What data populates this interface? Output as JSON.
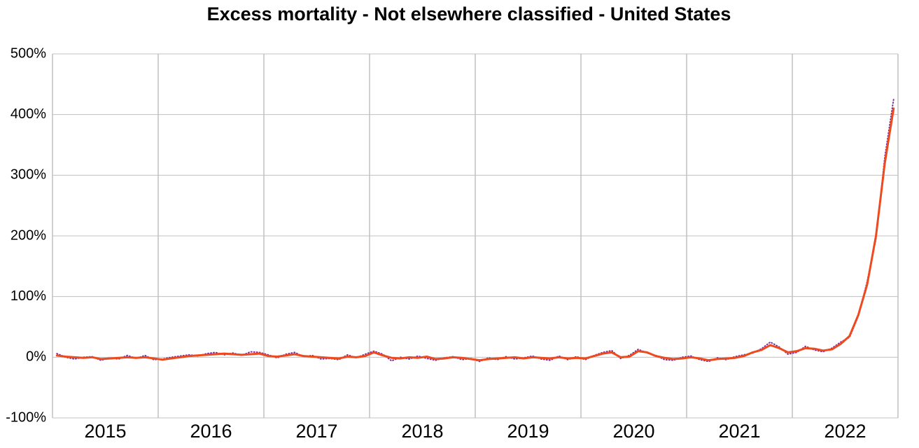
{
  "chart_data": {
    "type": "line",
    "title": "Excess mortality - Not elsewhere classified - United States",
    "categories": [
      null,
      null,
      null,
      null,
      null,
      null,
      "2015",
      null,
      null,
      null,
      null,
      null,
      null,
      null,
      null,
      null,
      null,
      null,
      "2016",
      null,
      null,
      null,
      null,
      null,
      null,
      null,
      null,
      null,
      null,
      null,
      "2017",
      null,
      null,
      null,
      null,
      null,
      null,
      null,
      null,
      null,
      null,
      null,
      "2018",
      null,
      null,
      null,
      null,
      null,
      null,
      null,
      null,
      null,
      null,
      null,
      "2019",
      null,
      null,
      null,
      null,
      null,
      null,
      null,
      null,
      null,
      null,
      null,
      "2020",
      null,
      null,
      null,
      null,
      null,
      null,
      null,
      null,
      null,
      null,
      null,
      "2021",
      null,
      null,
      null,
      null,
      null,
      null,
      null,
      null,
      null,
      null,
      null,
      "2022",
      null,
      null,
      null,
      null,
      null
    ],
    "series": [
      {
        "color": "#7a2fa0",
        "style": "dotted",
        "values": [
          6,
          0,
          -3,
          0,
          1,
          -5,
          -1,
          -3,
          3,
          -2,
          3,
          -4,
          -3,
          0,
          2,
          4,
          2,
          6,
          8,
          4,
          7,
          3,
          9,
          8,
          4,
          -1,
          5,
          8,
          1,
          3,
          -3,
          -2,
          -4,
          4,
          -1,
          5,
          10,
          5,
          -6,
          0,
          -3,
          2,
          -2,
          -5,
          -1,
          1,
          -4,
          -2,
          -7,
          -1,
          -4,
          1,
          -3,
          -1,
          2,
          -3,
          -5,
          2,
          -4,
          1,
          -4,
          3,
          8,
          11,
          -2,
          3,
          13,
          7,
          3,
          -4,
          -5,
          0,
          2,
          -4,
          -7,
          -1,
          -4,
          1,
          4,
          7,
          14,
          25,
          17,
          5,
          8,
          18,
          12,
          9,
          15,
          25,
          33,
          68,
          125,
          195,
          330,
          425
        ]
      },
      {
        "color": "#ee4a1e",
        "style": "solid",
        "values": [
          3,
          1,
          0,
          -1,
          0,
          -3,
          -2,
          -1,
          0,
          -1,
          0,
          -2,
          -4,
          -2,
          0,
          2,
          3,
          4,
          5,
          6,
          5,
          4,
          5,
          6,
          2,
          1,
          3,
          5,
          2,
          1,
          0,
          -1,
          -2,
          1,
          0,
          2,
          8,
          3,
          -1,
          -2,
          0,
          -1,
          1,
          -3,
          -2,
          0,
          -1,
          -3,
          -5,
          -3,
          -2,
          -1,
          0,
          -2,
          0,
          -1,
          -2,
          0,
          -2,
          -1,
          -2,
          2,
          6,
          8,
          0,
          1,
          10,
          8,
          2,
          -1,
          -3,
          -2,
          0,
          -2,
          -5,
          -3,
          -2,
          -1,
          2,
          8,
          12,
          20,
          15,
          8,
          10,
          15,
          14,
          11,
          13,
          22,
          35,
          70,
          120,
          200,
          320,
          410
        ]
      }
    ],
    "ylim": [
      -100,
      500
    ],
    "yticks": [
      {
        "value": -100,
        "label": "-100%"
      },
      {
        "value": 0,
        "label": "0%"
      },
      {
        "value": 100,
        "label": "100%"
      },
      {
        "value": 200,
        "label": "200%"
      },
      {
        "value": 300,
        "label": "300%"
      },
      {
        "value": 400,
        "label": "400%"
      },
      {
        "value": 500,
        "label": "500%"
      }
    ],
    "grid": true
  }
}
